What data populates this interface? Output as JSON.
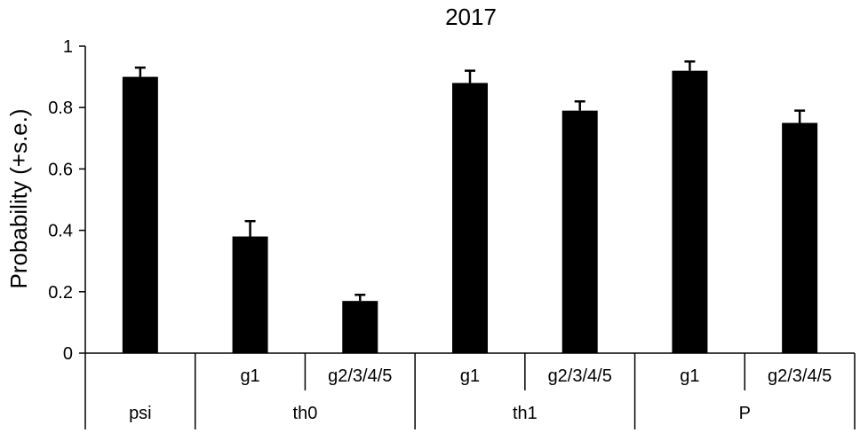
{
  "chart_data": {
    "type": "bar",
    "title": "2017",
    "ylabel": "Probability (+s.e.)",
    "xlabel": "",
    "ylim": [
      0,
      1
    ],
    "yticks": [
      0,
      0.2,
      0.4,
      0.6,
      0.8,
      1
    ],
    "ytick_labels": [
      "0",
      "0.2",
      "0.4",
      "0.6",
      "0.8",
      "1"
    ],
    "grid": false,
    "legend": "none",
    "bar_color": "#000000",
    "categories": [
      "psi",
      "th0 g1",
      "th0 g2/3/4/5",
      "th1 g1",
      "th1 g2/3/4/5",
      "P g1",
      "P g2/3/4/5"
    ],
    "sublabels": [
      "",
      "g1",
      "g2/3/4/5",
      "g1",
      "g2/3/4/5",
      "g1",
      "g2/3/4/5"
    ],
    "values": [
      0.9,
      0.38,
      0.17,
      0.88,
      0.79,
      0.92,
      0.75
    ],
    "errors": [
      0.03,
      0.05,
      0.02,
      0.04,
      0.03,
      0.03,
      0.04
    ],
    "groups": [
      {
        "label": "psi",
        "span": 1
      },
      {
        "label": "th0",
        "span": 2
      },
      {
        "label": "th1",
        "span": 2
      },
      {
        "label": "P",
        "span": 2
      }
    ]
  }
}
